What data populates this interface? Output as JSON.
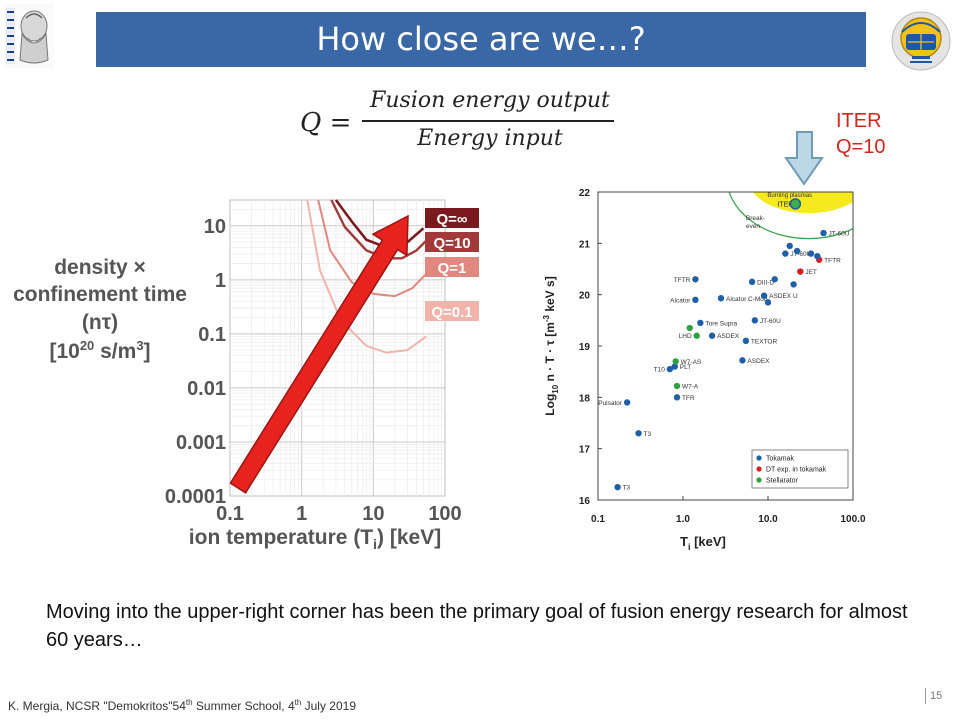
{
  "slide": {
    "title": "How close are we…?",
    "formula": {
      "lhs": "Q",
      "equals": "=",
      "numerator": "Fusion energy output",
      "denominator": "Energy input"
    },
    "iter_callout": {
      "line1": "ITER",
      "line2": "Q=10",
      "color": "#d0271d"
    },
    "left_axis_label": {
      "line1": "density ×",
      "line2": "confinement time",
      "line3": "(nτ)",
      "line4_main": "[10",
      "line4_sup": "20",
      "line4_mid": " s/m",
      "line4_sup2": "3",
      "line4_end": "]"
    },
    "bottom_text": "Moving into the upper-right corner has been the primary goal of fusion energy research for almost 60 years…",
    "footer": {
      "author": "K. Mergia, NCSR \"Demokritos\"54",
      "sup1": "th",
      "school": " Summer School, 4",
      "sup2": "th",
      "date": " July 2019"
    },
    "page_number": "15",
    "colors": {
      "title_bar": "#3a68a6",
      "arrow": "#e8231f",
      "q_inf": "#7a1a1f",
      "q_10": "#a23a3a",
      "q_1": "#e0877f",
      "q_01": "#f1b3aa"
    }
  },
  "chart_data": [
    {
      "type": "line",
      "x_scale": "log",
      "y_scale": "log",
      "xlim": [
        0.1,
        100
      ],
      "ylim": [
        0.0001,
        30
      ],
      "grid": true,
      "xlabel_main": "ion temperature (T",
      "xlabel_sub": "i",
      "xlabel_end": ") [keV]",
      "x_ticks": [
        "0.1",
        "1",
        "10",
        "100"
      ],
      "y_ticks": [
        "10",
        "1",
        "0.1",
        "0.01",
        "0.001",
        "0.0001"
      ],
      "series": [
        {
          "name": "Q=∞",
          "x": [
            3,
            5,
            8,
            15,
            20,
            30,
            50
          ],
          "y": [
            30,
            12,
            5.5,
            4,
            4,
            5,
            9
          ]
        },
        {
          "name": "Q=10",
          "x": [
            2.6,
            4,
            8,
            15,
            25,
            40,
            60
          ],
          "y": [
            30,
            9.5,
            3.5,
            2.5,
            2.5,
            3.5,
            6
          ]
        },
        {
          "name": "Q=1",
          "x": [
            1.7,
            2.5,
            5,
            10,
            20,
            35,
            55
          ],
          "y": [
            30,
            3.5,
            0.9,
            0.55,
            0.5,
            0.7,
            1.3
          ]
        },
        {
          "name": "Q=0.1",
          "x": [
            1.2,
            1.8,
            3.5,
            8,
            15,
            30,
            55
          ],
          "y": [
            30,
            1.5,
            0.18,
            0.06,
            0.045,
            0.05,
            0.09
          ]
        }
      ]
    },
    {
      "type": "scatter",
      "x_scale": "log",
      "xlim": [
        0.1,
        100
      ],
      "ylim": [
        16,
        22
      ],
      "xlabel_main": "T",
      "xlabel_sub": "i",
      "xlabel_end": "  [keV]",
      "ylabel_main": "Log",
      "ylabel_sub": "10",
      "ylabel_end": " n · T · τ   [m",
      "ylabel_sup": "-3",
      "ylabel_tail": " keV  s]",
      "x_ticks": [
        "0.1",
        "1.0",
        "10.0",
        "100.0"
      ],
      "y_ticks": [
        "16",
        "17",
        "18",
        "19",
        "20",
        "21",
        "22"
      ],
      "annotations": {
        "burning": "Burning plasmas",
        "iter": "ITER",
        "breakeven": "Break-even"
      },
      "legend_position": "bottom-right",
      "legend": [
        {
          "name": "Tokamak",
          "color": "#1f5fa8"
        },
        {
          "name": "DT exp. in tokamak",
          "color": "#d41f26"
        },
        {
          "name": "Stellarator",
          "color": "#2ea043"
        }
      ],
      "points": [
        {
          "label": "T3",
          "x": 0.17,
          "y": 16.25,
          "kind": "tokamak"
        },
        {
          "label": "T3",
          "x": 0.3,
          "y": 17.3,
          "kind": "tokamak"
        },
        {
          "label": "Pulsator",
          "x": 0.22,
          "y": 17.9,
          "kind": "tokamak"
        },
        {
          "label": "TFR",
          "x": 0.85,
          "y": 18.0,
          "kind": "tokamak"
        },
        {
          "label": "W7-A",
          "x": 0.85,
          "y": 18.22,
          "kind": "stellarator"
        },
        {
          "label": "T10",
          "x": 0.7,
          "y": 18.55,
          "kind": "tokamak"
        },
        {
          "label": "PLT",
          "x": 0.8,
          "y": 18.6,
          "kind": "tokamak"
        },
        {
          "label": "W7-AS",
          "x": 0.82,
          "y": 18.7,
          "kind": "stellarator"
        },
        {
          "label": "LHD",
          "x": 1.45,
          "y": 19.2,
          "kind": "stellarator"
        },
        {
          "label": "",
          "x": 1.2,
          "y": 19.35,
          "kind": "stellarator"
        },
        {
          "label": "ASDEX",
          "x": 2.2,
          "y": 19.2,
          "kind": "tokamak"
        },
        {
          "label": "Tore Supra",
          "x": 1.6,
          "y": 19.45,
          "kind": "tokamak"
        },
        {
          "label": "TEXTOR",
          "x": 5.5,
          "y": 19.1,
          "kind": "tokamak"
        },
        {
          "label": "ASDEX",
          "x": 5,
          "y": 18.72,
          "kind": "tokamak"
        },
        {
          "label": "JT-60U",
          "x": 7,
          "y": 19.5,
          "kind": "tokamak"
        },
        {
          "label": "Alcator",
          "x": 1.4,
          "y": 19.9,
          "kind": "tokamak"
        },
        {
          "label": "Alcator C-Mod",
          "x": 2.8,
          "y": 19.93,
          "kind": "tokamak"
        },
        {
          "label": "TFTR",
          "x": 1.4,
          "y": 20.3,
          "kind": "tokamak"
        },
        {
          "label": "DIII-D",
          "x": 6.5,
          "y": 20.25,
          "kind": "tokamak"
        },
        {
          "label": "ASDEX U",
          "x": 9,
          "y": 19.98,
          "kind": "tokamak"
        },
        {
          "label": "",
          "x": 10,
          "y": 19.85,
          "kind": "tokamak"
        },
        {
          "label": "",
          "x": 12,
          "y": 20.3,
          "kind": "tokamak"
        },
        {
          "label": "",
          "x": 20,
          "y": 20.2,
          "kind": "tokamak"
        },
        {
          "label": "JET",
          "x": 24,
          "y": 20.45,
          "kind": "dt"
        },
        {
          "label": "JT-60U",
          "x": 16,
          "y": 20.8,
          "kind": "tokamak"
        },
        {
          "label": "",
          "x": 18,
          "y": 20.95,
          "kind": "tokamak"
        },
        {
          "label": "",
          "x": 22,
          "y": 20.85,
          "kind": "tokamak"
        },
        {
          "label": "",
          "x": 32,
          "y": 20.8,
          "kind": "tokamak"
        },
        {
          "label": "TFTR",
          "x": 40,
          "y": 20.68,
          "kind": "dt"
        },
        {
          "label": "JT-60U",
          "x": 45,
          "y": 21.2,
          "kind": "tokamak"
        },
        {
          "label": "",
          "x": 38,
          "y": 20.75,
          "kind": "tokamak"
        }
      ]
    }
  ]
}
